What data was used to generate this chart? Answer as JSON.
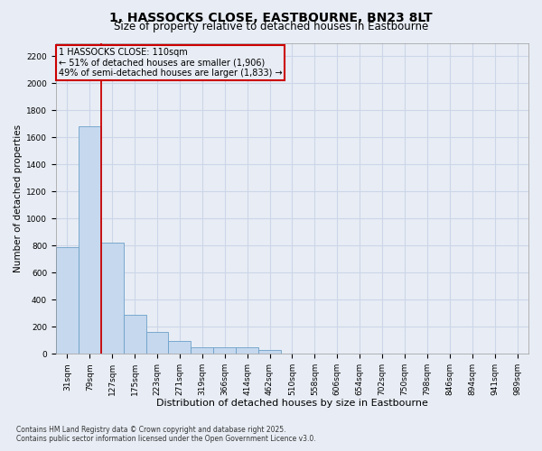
{
  "title": "1, HASSOCKS CLOSE, EASTBOURNE, BN23 8LT",
  "subtitle": "Size of property relative to detached houses in Eastbourne",
  "xlabel": "Distribution of detached houses by size in Eastbourne",
  "ylabel": "Number of detached properties",
  "categories": [
    "31sqm",
    "79sqm",
    "127sqm",
    "175sqm",
    "223sqm",
    "271sqm",
    "319sqm",
    "366sqm",
    "414sqm",
    "462sqm",
    "510sqm",
    "558sqm",
    "606sqm",
    "654sqm",
    "702sqm",
    "750sqm",
    "798sqm",
    "846sqm",
    "894sqm",
    "941sqm",
    "989sqm"
  ],
  "values": [
    790,
    1680,
    820,
    290,
    160,
    95,
    50,
    50,
    50,
    30,
    0,
    0,
    0,
    0,
    0,
    0,
    0,
    0,
    0,
    0,
    0
  ],
  "bar_color": "#c5d8ee",
  "bar_edge_color": "#6ca0c8",
  "grid_color": "#ccd6e8",
  "bg_color": "#e8edf5",
  "annotation_box_text": "1 HASSOCKS CLOSE: 110sqm\n← 51% of detached houses are smaller (1,906)\n49% of semi-detached houses are larger (1,833) →",
  "annotation_box_color": "#cc0000",
  "red_line_x": 1.5,
  "ylim": [
    0,
    2300
  ],
  "yticks": [
    0,
    200,
    400,
    600,
    800,
    1000,
    1200,
    1400,
    1600,
    1800,
    2000,
    2200
  ],
  "footnote": "Contains HM Land Registry data © Crown copyright and database right 2025.\nContains public sector information licensed under the Open Government Licence v3.0.",
  "title_fontsize": 10,
  "subtitle_fontsize": 8.5,
  "xlabel_fontsize": 8,
  "ylabel_fontsize": 7.5,
  "tick_fontsize": 6.5,
  "footnote_fontsize": 5.5,
  "ann_fontsize": 7
}
